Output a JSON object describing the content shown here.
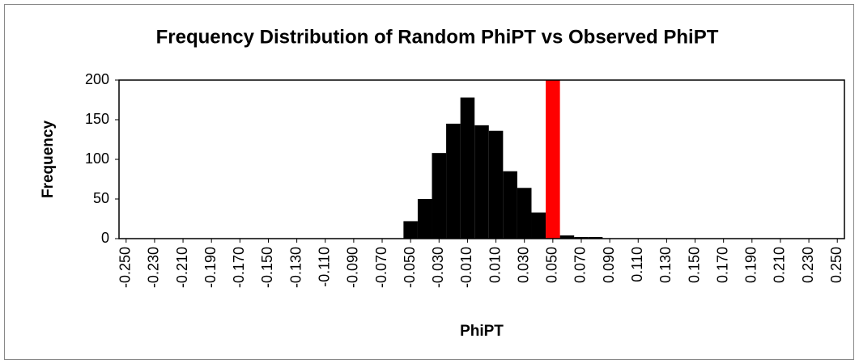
{
  "chart_data": {
    "type": "bar",
    "title": "Frequency Distribution of Random PhiPT vs Observed PhiPT",
    "x_label": "PhiPT",
    "y_label": "Frequency",
    "categories": [
      "-0.250",
      null,
      "-0.230",
      null,
      "-0.210",
      null,
      "-0.190",
      null,
      "-0.170",
      null,
      "-0.150",
      null,
      "-0.130",
      null,
      "-0.110",
      null,
      "-0.090",
      null,
      "-0.070",
      null,
      "-0.050",
      null,
      "-0.030",
      null,
      "-0.010",
      null,
      "0.010",
      null,
      "0.030",
      null,
      "0.050",
      null,
      "0.070",
      null,
      "0.090",
      null,
      "0.110",
      null,
      "0.130",
      null,
      "0.150",
      null,
      "0.170",
      null,
      "0.190",
      null,
      "0.210",
      null,
      "0.230",
      null,
      "0.250"
    ],
    "series": [
      {
        "color": "#000000",
        "values": [
          0,
          0,
          0,
          0,
          0,
          0,
          0,
          0,
          0,
          0,
          0,
          0,
          0,
          0,
          0,
          0,
          0,
          0,
          0,
          0,
          22,
          50,
          108,
          145,
          178,
          143,
          136,
          85,
          64,
          33,
          null,
          4,
          2,
          2,
          0,
          0,
          0,
          0,
          0,
          0,
          0,
          0,
          0,
          0,
          0,
          0,
          0,
          0,
          0,
          0,
          0
        ]
      },
      {
        "color": "#ff0000",
        "values": [
          null,
          null,
          null,
          null,
          null,
          null,
          null,
          null,
          null,
          null,
          null,
          null,
          null,
          null,
          null,
          null,
          null,
          null,
          null,
          null,
          null,
          null,
          null,
          null,
          null,
          null,
          null,
          null,
          null,
          null,
          200,
          null,
          null,
          null,
          null,
          null,
          null,
          null,
          null,
          null,
          null,
          null,
          null,
          null,
          null,
          null,
          null,
          null,
          null,
          null,
          null
        ]
      }
    ],
    "ylim": [
      0,
      200
    ],
    "yticks": [
      0,
      50,
      100,
      150,
      200
    ],
    "grid": false
  }
}
